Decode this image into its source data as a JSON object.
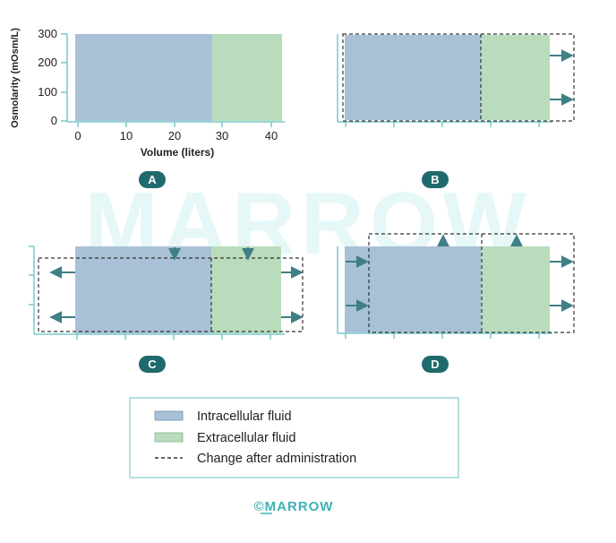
{
  "colors": {
    "intracellular": "#a9c1d6",
    "extracellular": "#b9dcbc",
    "axis": "#79c8cc",
    "arrow": "#3f7f86",
    "badge": "#1f6a6d",
    "legend_border": "#9fd4d6",
    "dash": "#333333",
    "watermark": "#e6f7f7",
    "brand": "#3fb2b6"
  },
  "panel_a": {
    "ylabel": "Osmolarity (mOsm/L)",
    "xlabel": "Volume (liters)",
    "yticks": [
      "300",
      "200",
      "100",
      "0"
    ],
    "xticks": [
      "0",
      "10",
      "20",
      "30",
      "40"
    ]
  },
  "panels": {
    "a": {
      "label": "A"
    },
    "b": {
      "label": "B"
    },
    "c": {
      "label": "C"
    },
    "d": {
      "label": "D"
    }
  },
  "legend": {
    "items": [
      {
        "key": "icf",
        "label": "Intracellular fluid"
      },
      {
        "key": "ecf",
        "label": "Extracellular fluid"
      },
      {
        "key": "change",
        "label": "Change after administration"
      }
    ]
  },
  "watermark": {
    "text": "MARROW"
  },
  "footer": {
    "copyright": "©MARROW"
  }
}
